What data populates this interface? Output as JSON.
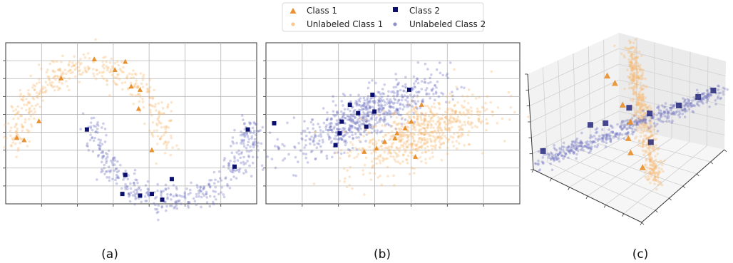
{
  "legend": {
    "placement": "top-center",
    "items": [
      {
        "label": "Class 1",
        "marker": "triangle",
        "color": "#e8902e"
      },
      {
        "label": "Class 2",
        "marker": "square",
        "color": "#0b0f6e"
      },
      {
        "label": "Unlabeled Class 1",
        "marker": "dot",
        "color": "#f9c98f"
      },
      {
        "label": "Unlabeled Class 2",
        "marker": "dot",
        "color": "#8d8fcb"
      }
    ]
  },
  "colors": {
    "class1": "#e8902e",
    "class2": "#0b0f6e",
    "unlabeled1": "#f5b870",
    "unlabeled2": "#6f73c0"
  },
  "chart_data": [
    {
      "type": "scatter",
      "caption": "(a)",
      "grid": true,
      "xlim": [
        -1.2,
        2.2
      ],
      "ylim": [
        -0.7,
        1.25
      ],
      "labeled_class1": [
        [
          -1.05,
          0.1
        ],
        [
          -0.95,
          0.07
        ],
        [
          -0.75,
          0.3
        ],
        [
          -0.45,
          0.82
        ],
        [
          0.0,
          1.05
        ],
        [
          0.28,
          0.92
        ],
        [
          0.42,
          1.02
        ],
        [
          0.5,
          0.72
        ],
        [
          0.62,
          0.68
        ],
        [
          0.6,
          0.45
        ],
        [
          0.78,
          -0.05
        ]
      ],
      "labeled_class2": [
        [
          -0.1,
          0.2
        ],
        [
          0.42,
          -0.35
        ],
        [
          0.38,
          -0.58
        ],
        [
          0.62,
          -0.6
        ],
        [
          0.78,
          -0.58
        ],
        [
          0.92,
          -0.65
        ],
        [
          1.05,
          -0.4
        ],
        [
          1.9,
          -0.25
        ],
        [
          2.08,
          0.2
        ]
      ]
    },
    {
      "type": "scatter",
      "caption": "(b)",
      "grid": true,
      "xlim": [
        -3.0,
        3.2
      ],
      "ylim": [
        -2.4,
        2.4
      ],
      "labeled_class1": [
        [
          -0.6,
          -0.85
        ],
        [
          -0.3,
          -0.75
        ],
        [
          -0.1,
          -0.55
        ],
        [
          0.15,
          -0.45
        ],
        [
          0.2,
          -0.3
        ],
        [
          0.4,
          -0.15
        ],
        [
          0.55,
          0.05
        ],
        [
          0.8,
          0.55
        ],
        [
          0.65,
          -1.0
        ]
      ],
      "labeled_class2": [
        [
          -2.8,
          0.0
        ],
        [
          -1.3,
          -0.65
        ],
        [
          -1.2,
          -0.3
        ],
        [
          -1.15,
          0.05
        ],
        [
          -0.95,
          0.55
        ],
        [
          -0.75,
          0.3
        ],
        [
          -0.55,
          -0.1
        ],
        [
          -0.4,
          0.85
        ],
        [
          -0.35,
          0.35
        ],
        [
          0.5,
          1.0
        ]
      ]
    },
    {
      "type": "scatter",
      "caption": "(c)",
      "projection": "3d",
      "grid": true,
      "labeled_class1": [
        [
          -0.9,
          0.6,
          0.3
        ],
        [
          -0.6,
          0.4,
          0.4
        ],
        [
          -0.3,
          0.2,
          0.2
        ],
        [
          0.0,
          0.0,
          0.1
        ],
        [
          0.2,
          -0.3,
          0.0
        ],
        [
          0.4,
          -0.5,
          -0.1
        ],
        [
          0.7,
          -0.6,
          -0.2
        ]
      ],
      "labeled_class2": [
        [
          -0.9,
          -0.9,
          -0.6
        ],
        [
          -0.5,
          -0.3,
          -0.1
        ],
        [
          -0.3,
          -0.2,
          0.0
        ],
        [
          -0.1,
          0.1,
          0.3
        ],
        [
          0.2,
          0.2,
          0.3
        ],
        [
          0.3,
          0.1,
          -0.2
        ],
        [
          0.5,
          0.5,
          0.5
        ],
        [
          0.7,
          0.7,
          0.7
        ],
        [
          0.9,
          0.8,
          0.9
        ]
      ]
    }
  ]
}
